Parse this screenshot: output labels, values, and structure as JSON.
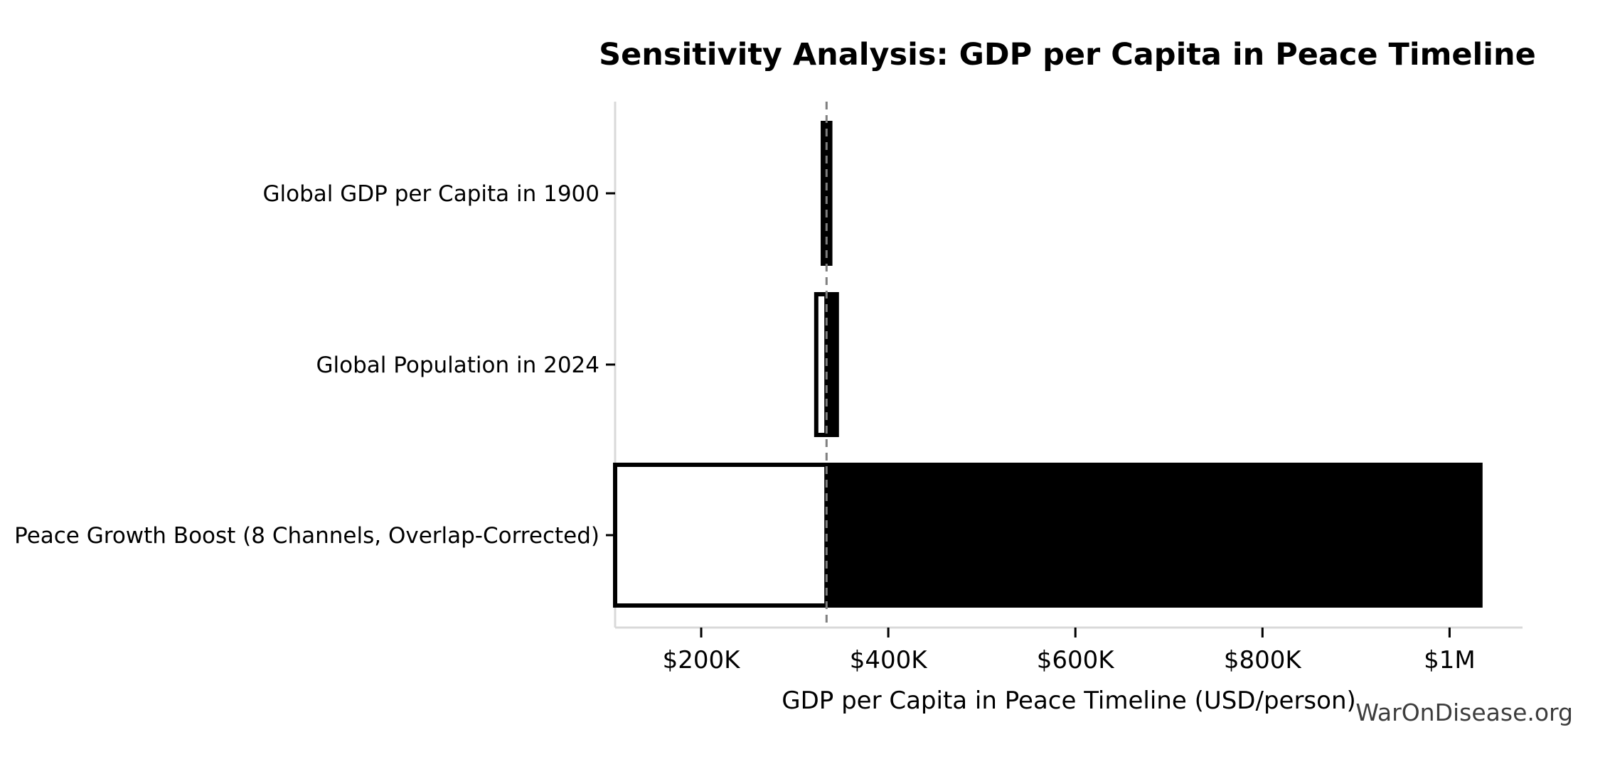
{
  "watermark": "WarOnDisease.org",
  "chart_data": {
    "type": "bar",
    "subtype": "tornado-sensitivity",
    "orientation": "horizontal",
    "title": "Sensitivity Analysis: GDP per Capita in Peace Timeline",
    "xlabel": "GDP per Capita in Peace Timeline (USD/person)",
    "ylabel": "",
    "xlim": [
      108000,
      1078000
    ],
    "baseline": 334000,
    "grid": false,
    "legend": "none",
    "xticks": [
      {
        "value": 200000,
        "label": "$200K"
      },
      {
        "value": 400000,
        "label": "$400K"
      },
      {
        "value": 600000,
        "label": "$600K"
      },
      {
        "value": 800000,
        "label": "$800K"
      },
      {
        "value": 1000000,
        "label": "$1M"
      }
    ],
    "rows": [
      {
        "label": "Global GDP per Capita in 1900",
        "low": 330000,
        "high": 338000
      },
      {
        "label": "Global Population in 2024",
        "low": 323000,
        "high": 345000
      },
      {
        "label": "Peace Growth Boost (8 Channels, Overlap-Corrected)",
        "low": 108000,
        "high": 1033000
      }
    ],
    "colors": {
      "low_fill": "#ffffff",
      "high_fill": "#000000",
      "bar_edge": "#000000",
      "baseline_line": "#7f7f7f",
      "spine": "#d9d9d9",
      "tick": "#000000",
      "text": "#000000",
      "watermark": "#3d3d3d",
      "background": "#ffffff"
    }
  }
}
